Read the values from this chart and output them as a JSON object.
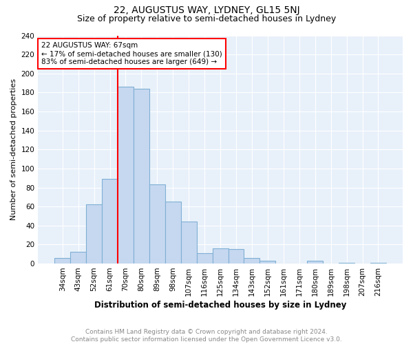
{
  "title": "22, AUGUSTUS WAY, LYDNEY, GL15 5NJ",
  "subtitle": "Size of property relative to semi-detached houses in Lydney",
  "xlabel": "Distribution of semi-detached houses by size in Lydney",
  "ylabel": "Number of semi-detached properties",
  "categories": [
    "34sqm",
    "43sqm",
    "52sqm",
    "61sqm",
    "70sqm",
    "80sqm",
    "89sqm",
    "98sqm",
    "107sqm",
    "116sqm",
    "125sqm",
    "134sqm",
    "143sqm",
    "152sqm",
    "161sqm",
    "171sqm",
    "180sqm",
    "189sqm",
    "198sqm",
    "207sqm",
    "216sqm"
  ],
  "values": [
    6,
    12,
    62,
    89,
    186,
    184,
    83,
    65,
    44,
    11,
    16,
    15,
    6,
    3,
    0,
    0,
    3,
    0,
    1,
    0,
    1
  ],
  "bar_color": "#C5D8F0",
  "bar_edge_color": "#7FAFD4",
  "bar_linewidth": 0.8,
  "vline_x_index": 4,
  "vline_color": "red",
  "vline_linewidth": 1.5,
  "annotation_title": "22 AUGUSTUS WAY: 67sqm",
  "annotation_line1": "← 17% of semi-detached houses are smaller (130)",
  "annotation_line2": "83% of semi-detached houses are larger (649) →",
  "annotation_box_color": "red",
  "ylim": [
    0,
    240
  ],
  "yticks": [
    0,
    20,
    40,
    60,
    80,
    100,
    120,
    140,
    160,
    180,
    200,
    220,
    240
  ],
  "footer_line1": "Contains HM Land Registry data © Crown copyright and database right 2024.",
  "footer_line2": "Contains public sector information licensed under the Open Government Licence v3.0.",
  "plot_bg_color": "#E8F1FA",
  "grid_color": "#FFFFFF",
  "title_fontsize": 10,
  "subtitle_fontsize": 9,
  "xlabel_fontsize": 8.5,
  "ylabel_fontsize": 8,
  "tick_fontsize": 7.5,
  "annotation_fontsize": 7.5,
  "footer_fontsize": 6.5
}
